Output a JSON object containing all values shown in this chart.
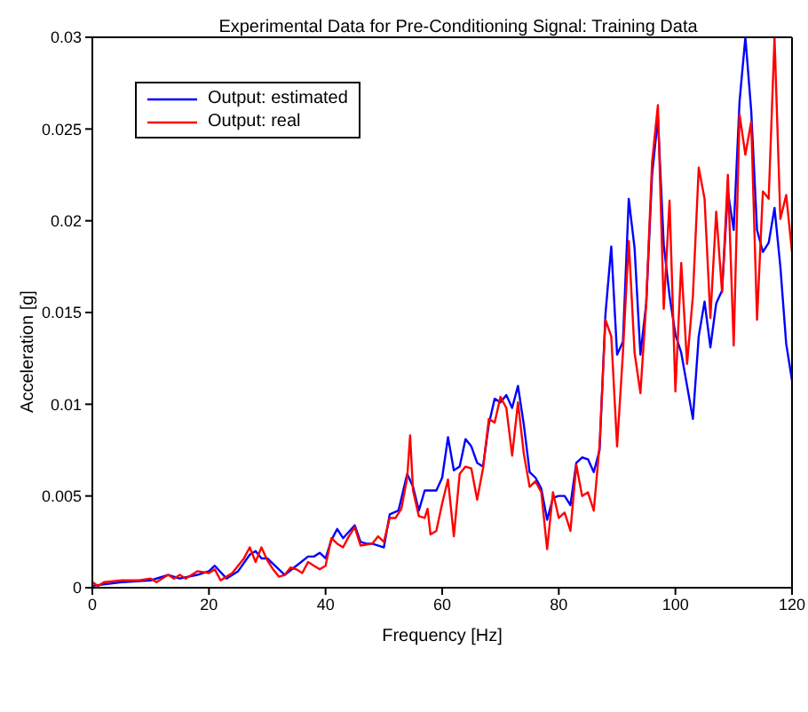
{
  "chart_data": {
    "type": "line",
    "title": "Experimental Data for Pre-Conditioning Signal: Training Data",
    "xlabel": "Frequency [Hz]",
    "ylabel": "Acceleration [g]",
    "xlim": [
      0,
      120
    ],
    "xticks": [
      0,
      20,
      40,
      60,
      80,
      100,
      120
    ],
    "ylim": [
      0,
      0.03
    ],
    "yticks": [
      0,
      0.005,
      0.01,
      0.015,
      0.02,
      0.025,
      0.03
    ],
    "grid": false,
    "legend": "top left",
    "line_style": "solid",
    "marker": "none",
    "series": [
      {
        "name": "Output: estimated",
        "color": "#0000ff",
        "x": [
          0,
          5,
          10,
          13,
          15,
          18,
          20,
          21,
          23,
          25,
          27,
          28,
          29,
          30,
          31,
          33,
          35,
          37,
          38,
          39,
          40,
          41,
          42,
          43,
          45,
          46,
          47,
          48,
          50,
          51,
          52.5,
          54,
          55,
          56,
          57,
          59,
          60,
          61,
          62,
          63,
          64,
          65,
          66,
          67,
          68,
          69,
          70,
          71,
          72,
          73,
          74,
          75,
          76,
          77,
          78,
          79,
          80,
          81,
          82,
          83,
          84,
          85,
          86,
          87,
          88,
          89,
          90,
          91,
          92,
          93,
          94,
          95,
          96,
          97,
          98,
          99,
          100,
          101,
          102,
          103,
          104,
          105,
          106,
          107,
          108,
          109,
          110,
          111,
          112,
          113,
          114,
          115,
          116,
          117,
          118,
          119,
          120
        ],
        "values": [
          0.0001,
          0.0003,
          0.0004,
          0.0007,
          0.0005,
          0.0007,
          0.0009,
          0.0012,
          0.0005,
          0.0009,
          0.0018,
          0.002,
          0.0016,
          0.0016,
          0.0013,
          0.0007,
          0.0012,
          0.0017,
          0.0017,
          0.0019,
          0.0016,
          0.0026,
          0.0032,
          0.0027,
          0.0034,
          0.0025,
          0.0024,
          0.0024,
          0.0022,
          0.004,
          0.0042,
          0.0062,
          0.0055,
          0.0042,
          0.0053,
          0.0053,
          0.006,
          0.0082,
          0.0064,
          0.0066,
          0.0081,
          0.0077,
          0.0068,
          0.0066,
          0.0089,
          0.0103,
          0.0101,
          0.0105,
          0.0098,
          0.011,
          0.0089,
          0.0063,
          0.006,
          0.0054,
          0.0037,
          0.0049,
          0.005,
          0.005,
          0.0045,
          0.0068,
          0.0071,
          0.007,
          0.0063,
          0.0075,
          0.0149,
          0.0186,
          0.0127,
          0.0134,
          0.0212,
          0.0185,
          0.0127,
          0.0155,
          0.0225,
          0.0256,
          0.0187,
          0.0159,
          0.0138,
          0.0128,
          0.011,
          0.0092,
          0.0137,
          0.0156,
          0.0131,
          0.0155,
          0.0162,
          0.0216,
          0.0195,
          0.0265,
          0.03,
          0.026,
          0.0195,
          0.0183,
          0.0188,
          0.0207,
          0.0175,
          0.0133,
          0.0113
        ]
      },
      {
        "name": "Output: real",
        "color": "#ff0000",
        "x": [
          0,
          1,
          2,
          5,
          8,
          10,
          11,
          13,
          14,
          15,
          16,
          18,
          20,
          21,
          22,
          24,
          26,
          27,
          28,
          29,
          30,
          31,
          32,
          33,
          34,
          35,
          36,
          37,
          38,
          39,
          40,
          41,
          42,
          43,
          44,
          45,
          46,
          48,
          49,
          50,
          51,
          52,
          53,
          54,
          54.5,
          55,
          56,
          57,
          57.5,
          58,
          59,
          60,
          61,
          62,
          63,
          64,
          65,
          66,
          67,
          68,
          69,
          70,
          71,
          72,
          73,
          74,
          75,
          76,
          77,
          78,
          79,
          80,
          81,
          82,
          83,
          84,
          85,
          86,
          87,
          88,
          89,
          90,
          91,
          92,
          93,
          94,
          95,
          96,
          97,
          98,
          99,
          100,
          101,
          102,
          103,
          104,
          105,
          106,
          107,
          108,
          109,
          110,
          111,
          112,
          113,
          114,
          115,
          116,
          117,
          118,
          119,
          120
        ],
        "values": [
          0.0003,
          0.0001,
          0.0003,
          0.0004,
          0.0004,
          0.0005,
          0.0003,
          0.0007,
          0.0005,
          0.0007,
          0.0005,
          0.0009,
          0.0008,
          0.001,
          0.0004,
          0.0008,
          0.0016,
          0.0022,
          0.0014,
          0.0022,
          0.0015,
          0.001,
          0.0006,
          0.0007,
          0.0011,
          0.001,
          0.0008,
          0.0014,
          0.0012,
          0.001,
          0.0012,
          0.0027,
          0.0024,
          0.0022,
          0.0028,
          0.0033,
          0.0023,
          0.0024,
          0.0028,
          0.0025,
          0.0038,
          0.0038,
          0.0043,
          0.006,
          0.0083,
          0.0053,
          0.0039,
          0.0038,
          0.0043,
          0.0029,
          0.0031,
          0.0046,
          0.0059,
          0.0028,
          0.0062,
          0.0066,
          0.0065,
          0.0048,
          0.0065,
          0.0092,
          0.009,
          0.0104,
          0.0098,
          0.0072,
          0.0101,
          0.0073,
          0.0055,
          0.0058,
          0.0052,
          0.0021,
          0.0052,
          0.0038,
          0.0041,
          0.0031,
          0.0067,
          0.005,
          0.0052,
          0.0042,
          0.0078,
          0.0146,
          0.0137,
          0.0077,
          0.0128,
          0.0189,
          0.0128,
          0.0106,
          0.0155,
          0.0232,
          0.0263,
          0.0152,
          0.0211,
          0.0107,
          0.0177,
          0.0122,
          0.0159,
          0.0229,
          0.0212,
          0.0147,
          0.0205,
          0.0161,
          0.0225,
          0.0132,
          0.0258,
          0.0236,
          0.0254,
          0.0146,
          0.0216,
          0.0212,
          0.03,
          0.0201,
          0.0214,
          0.0183
        ]
      }
    ]
  }
}
